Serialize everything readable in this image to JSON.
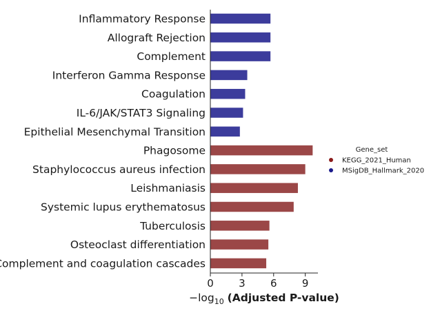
{
  "chart_data": {
    "type": "bar",
    "orientation": "horizontal",
    "categories": [
      "Inflammatory Response",
      "Allograft Rejection",
      "Complement",
      "Interferon Gamma Response",
      "Coagulation",
      "IL-6/JAK/STAT3 Signaling",
      "Epithelial Mesenchymal Transition",
      "Phagosome",
      "Staphylococcus aureus infection",
      "Leishmaniasis",
      "Systemic lupus erythematosus",
      "Tuberculosis",
      "Osteoclast differentiation",
      "Complement and coagulation cascades"
    ],
    "values": [
      5.7,
      5.7,
      5.7,
      3.5,
      3.3,
      3.1,
      2.8,
      9.7,
      9.0,
      8.3,
      7.9,
      5.6,
      5.5,
      5.3
    ],
    "groups": [
      "MSigDB_Hallmark_2020",
      "MSigDB_Hallmark_2020",
      "MSigDB_Hallmark_2020",
      "MSigDB_Hallmark_2020",
      "MSigDB_Hallmark_2020",
      "MSigDB_Hallmark_2020",
      "MSigDB_Hallmark_2020",
      "KEGG_2021_Human",
      "KEGG_2021_Human",
      "KEGG_2021_Human",
      "KEGG_2021_Human",
      "KEGG_2021_Human",
      "KEGG_2021_Human",
      "KEGG_2021_Human"
    ],
    "xlabel_prefix": "−log",
    "xlabel_sub": "10",
    "xlabel_main": "(Adjusted P-value)",
    "ylabel": "",
    "xlim": [
      0,
      10.2
    ],
    "xticks": [
      "0",
      "3",
      "6",
      "9"
    ],
    "xtick_values": [
      0,
      3,
      6,
      9
    ],
    "grid": false,
    "legend": {
      "title": "Gene_set",
      "placement": "right",
      "entries": [
        {
          "label": "KEGG_2021_Human",
          "color": "#8b1a1a",
          "bar_color": "#9b4747"
        },
        {
          "label": "MSigDB_Hallmark_2020",
          "color": "#1a1a8b",
          "bar_color": "#3c3c9c"
        }
      ]
    }
  }
}
